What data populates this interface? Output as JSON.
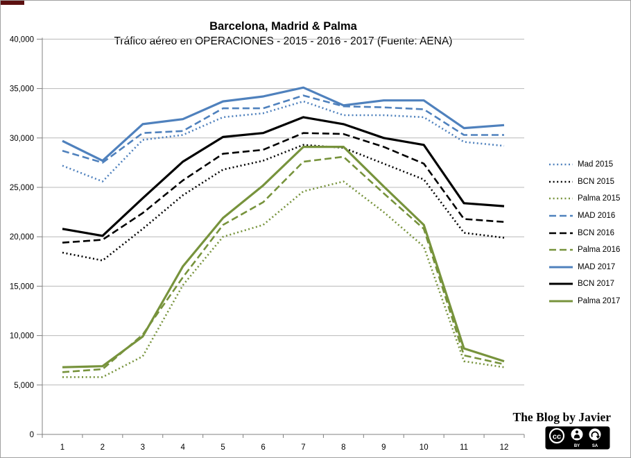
{
  "title": "Barcelona, Madrid & Palma",
  "subtitle": "Tráfico aéreo en OPERACIONES - 2015 - 2016 - 2017 (Fuente: AENA)",
  "watermark": "The Blog by Javier",
  "license": {
    "cc_label": "cc",
    "by_label": "BY",
    "sa_label": "SA"
  },
  "colors": {
    "madrid_blue": "#4F81BD",
    "bcn_black": "#000000",
    "palma_green": "#77933C",
    "gridline": "#b8b8b8",
    "axis": "#808080"
  },
  "chart_data": {
    "type": "line",
    "x": [
      "1",
      "2",
      "3",
      "4",
      "5",
      "6",
      "7",
      "8",
      "9",
      "10",
      "11",
      "12"
    ],
    "xlabel": "",
    "ylabel": "",
    "ylim": [
      0,
      40000
    ],
    "ytick_step": 5000,
    "ytick_labels": [
      "0",
      "5,000",
      "10,000",
      "15,000",
      "20,000",
      "25,000",
      "30,000",
      "35,000",
      "40,000"
    ],
    "grid": true,
    "legend_position": "right",
    "series": [
      {
        "name": "Mad 2015",
        "color": "#4F81BD",
        "style": "dotted",
        "values": [
          27200,
          25600,
          29800,
          30300,
          32100,
          32500,
          33700,
          32300,
          32300,
          32100,
          29600,
          29200
        ]
      },
      {
        "name": "BCN 2015",
        "color": "#000000",
        "style": "dotted",
        "values": [
          18400,
          17600,
          20800,
          24200,
          26800,
          27700,
          29300,
          29000,
          27400,
          25800,
          20400,
          19900
        ]
      },
      {
        "name": "Palma 2015",
        "color": "#77933C",
        "style": "dotted",
        "values": [
          5800,
          5800,
          7900,
          15100,
          20000,
          21200,
          24600,
          25600,
          22500,
          19000,
          7400,
          6800
        ]
      },
      {
        "name": "MAD 2016",
        "color": "#4F81BD",
        "style": "dashed",
        "values": [
          28700,
          27500,
          30500,
          30700,
          33000,
          33000,
          34300,
          33200,
          33100,
          32900,
          30300,
          30300
        ]
      },
      {
        "name": "BCN 2016",
        "color": "#000000",
        "style": "dashed",
        "values": [
          19400,
          19700,
          22400,
          25700,
          28400,
          28800,
          30500,
          30400,
          29100,
          27400,
          21800,
          21500
        ]
      },
      {
        "name": "Palma 2016",
        "color": "#77933C",
        "style": "dashed",
        "values": [
          6300,
          6600,
          10100,
          15900,
          21200,
          23500,
          27600,
          28100,
          24400,
          20800,
          8000,
          7100
        ]
      },
      {
        "name": "MAD 2017",
        "color": "#4F81BD",
        "style": "solid",
        "values": [
          29700,
          27700,
          31400,
          31900,
          33700,
          34200,
          35100,
          33300,
          33800,
          33800,
          31000,
          31300
        ]
      },
      {
        "name": "BCN 2017",
        "color": "#000000",
        "style": "solid",
        "values": [
          20800,
          20100,
          23900,
          27600,
          30100,
          30500,
          32100,
          31400,
          30000,
          29300,
          23400,
          23100
        ]
      },
      {
        "name": "Palma 2017",
        "color": "#77933C",
        "style": "solid",
        "values": [
          6800,
          6900,
          9900,
          17000,
          21900,
          25200,
          29100,
          29100,
          25100,
          21200,
          8700,
          7400
        ]
      }
    ]
  }
}
